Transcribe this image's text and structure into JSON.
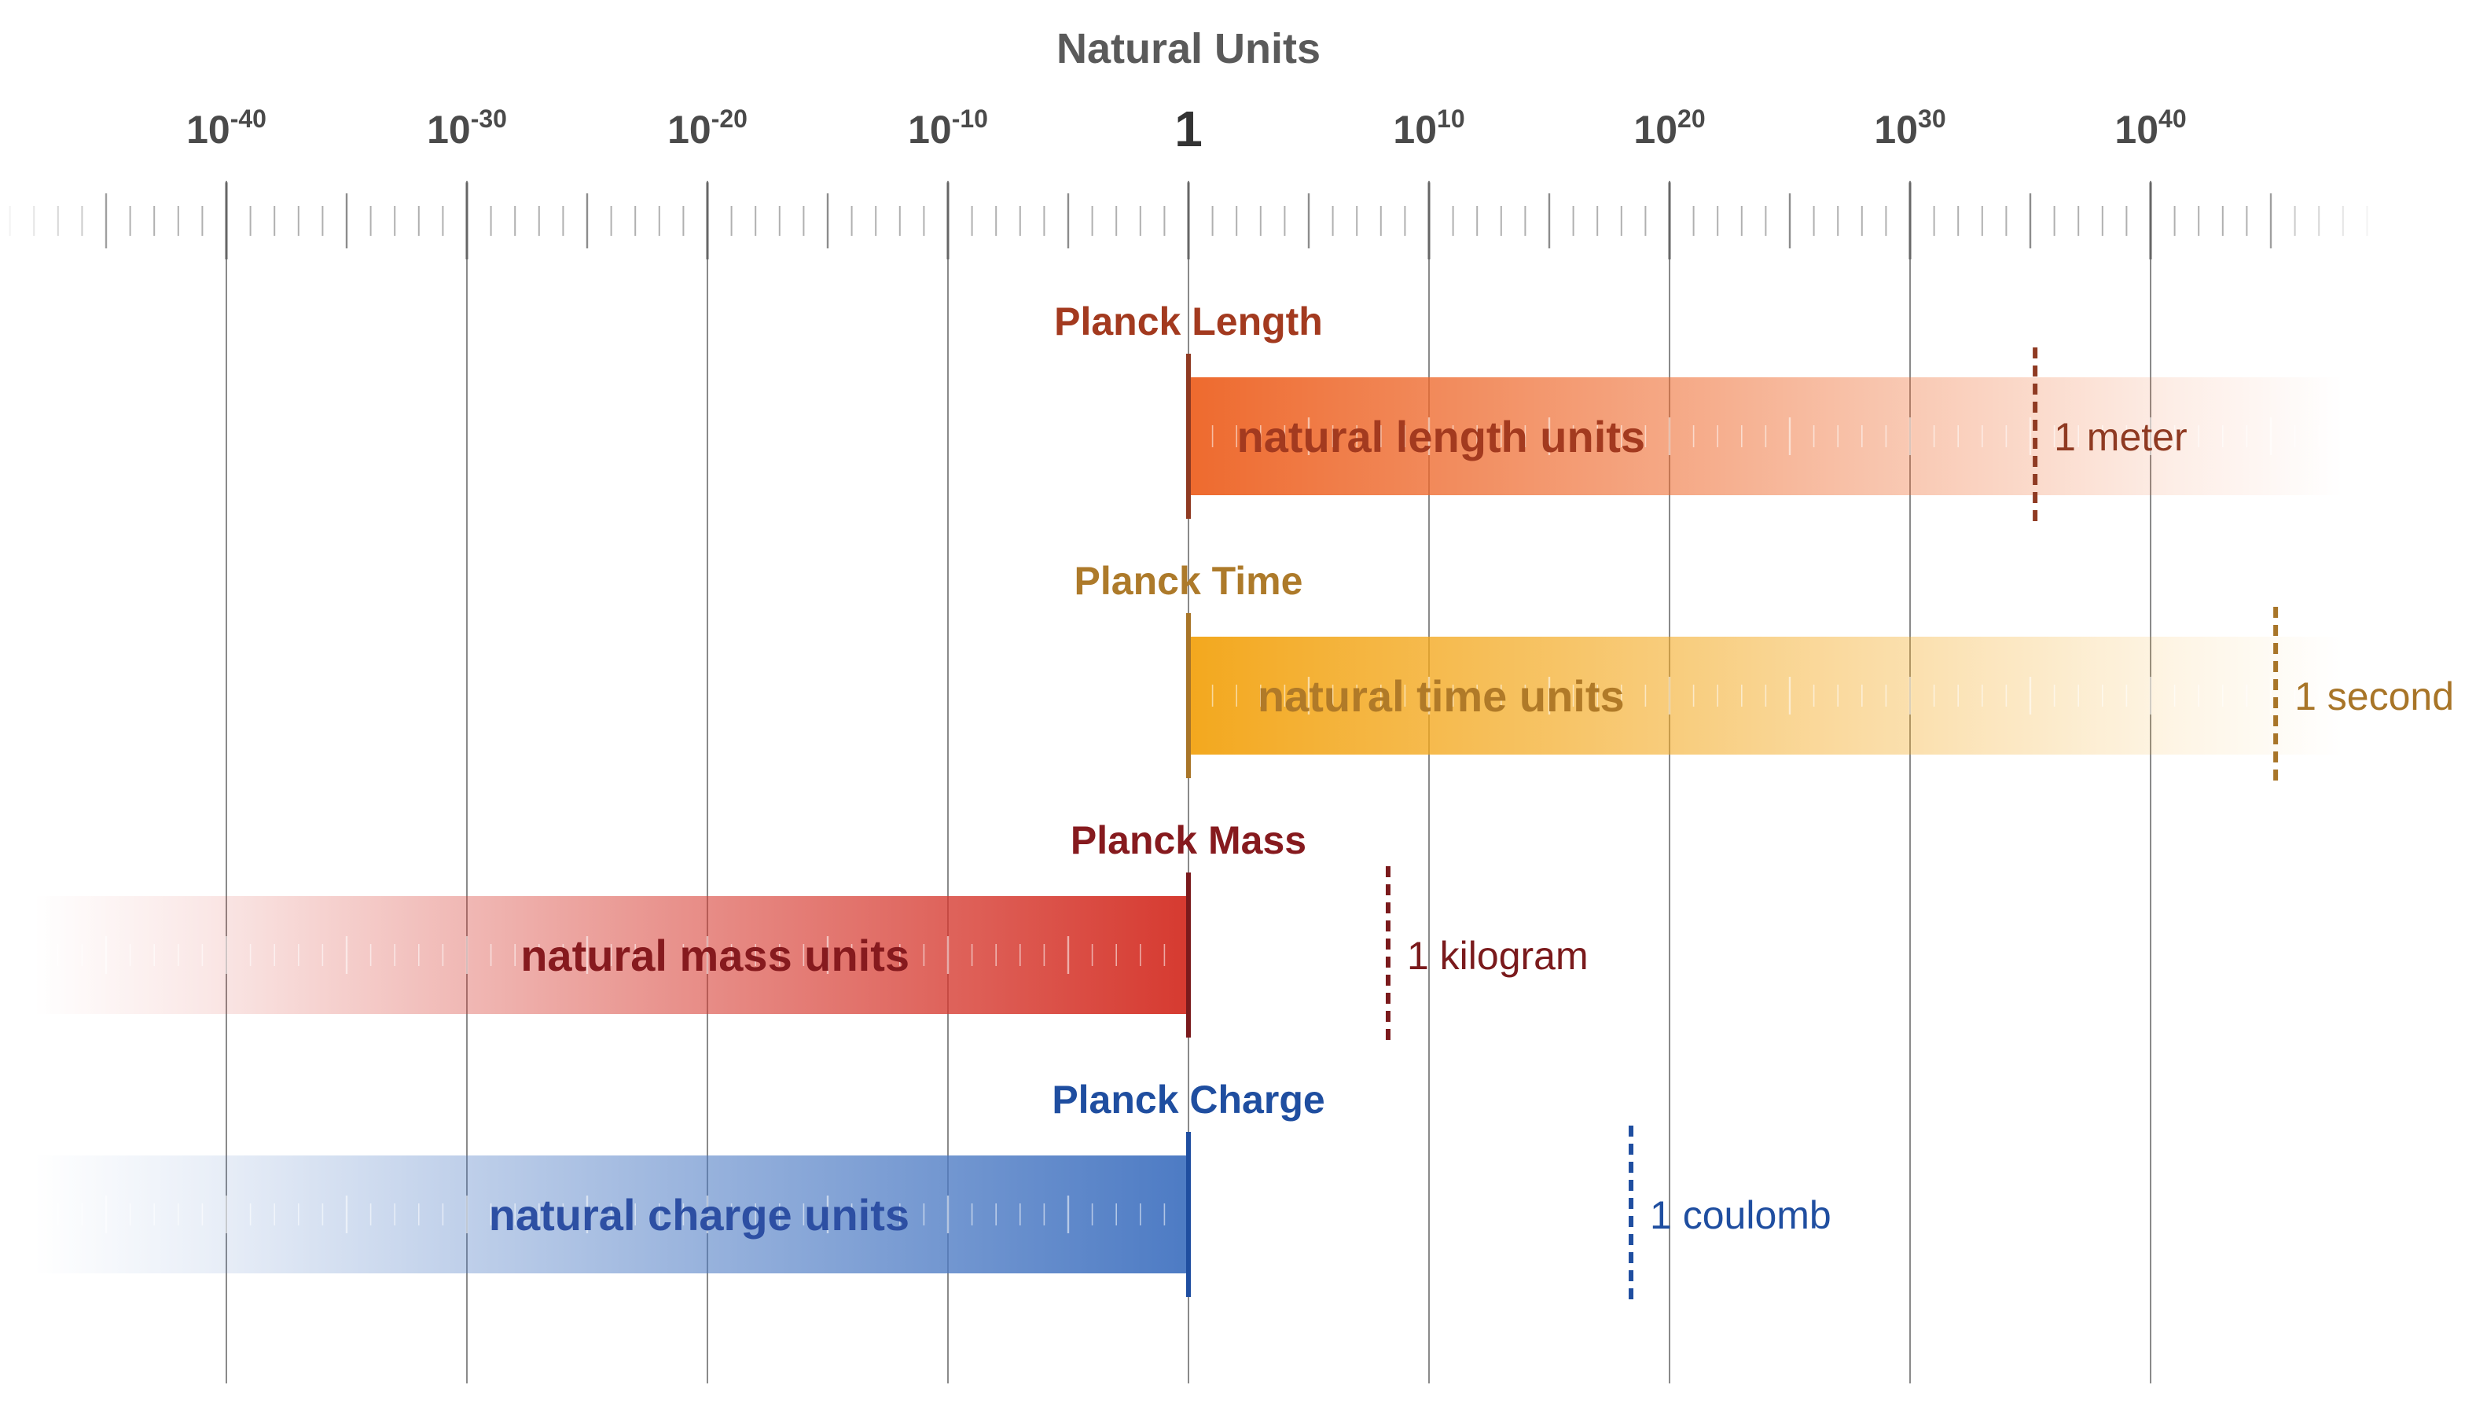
{
  "title": "Natural Units",
  "axis": {
    "min_exponent": -50,
    "max_exponent": 50,
    "labels": [
      {
        "base": "10",
        "exp": "-40",
        "value": -40
      },
      {
        "base": "10",
        "exp": "-30",
        "value": -30
      },
      {
        "base": "10",
        "exp": "-20",
        "value": -20
      },
      {
        "base": "10",
        "exp": "-10",
        "value": -10
      },
      {
        "base": "1",
        "exp": "",
        "value": 0
      },
      {
        "base": "10",
        "exp": "10",
        "value": 10
      },
      {
        "base": "10",
        "exp": "20",
        "value": 20
      },
      {
        "base": "10",
        "exp": "30",
        "value": 30
      },
      {
        "base": "10",
        "exp": "40",
        "value": 40
      }
    ]
  },
  "rows": [
    {
      "key": "length",
      "planck_label": "Planck Length",
      "bar_label": "natural length units",
      "si_label": "1 meter",
      "si_exponent": 35.2,
      "direction": "right",
      "colors": {
        "strong": "#ee6a2e",
        "text": "#a33a1f",
        "bar_text": "#a33a1f",
        "marker": "#8f3a22",
        "si_text": "#8f3a22"
      }
    },
    {
      "key": "time",
      "planck_label": "Planck Time",
      "bar_label": "natural time units",
      "si_label": "1 second",
      "si_exponent": 45.2,
      "direction": "right",
      "colors": {
        "strong": "#f3a81e",
        "text": "#ad7a2a",
        "bar_text": "#b07a28",
        "marker": "#a87528",
        "si_text": "#a87528"
      }
    },
    {
      "key": "mass",
      "planck_label": "Planck Mass",
      "bar_label": "natural mass units",
      "si_label": "1 kilogram",
      "si_exponent": 8.3,
      "direction": "left",
      "colors": {
        "strong": "#d63a30",
        "text": "#861a1e",
        "bar_text": "#861a1e",
        "marker": "#7a1a1c",
        "si_text": "#7a1a1c"
      }
    },
    {
      "key": "charge",
      "planck_label": "Planck Charge",
      "bar_label": "natural charge units",
      "si_label": "1 coulomb",
      "si_exponent": 18.4,
      "direction": "left",
      "colors": {
        "strong": "#4d7bc4",
        "text": "#1f4ea0",
        "bar_text": "#2d4fa3",
        "marker": "#1f4ea0",
        "si_text": "#1f4ea0"
      }
    }
  ]
}
